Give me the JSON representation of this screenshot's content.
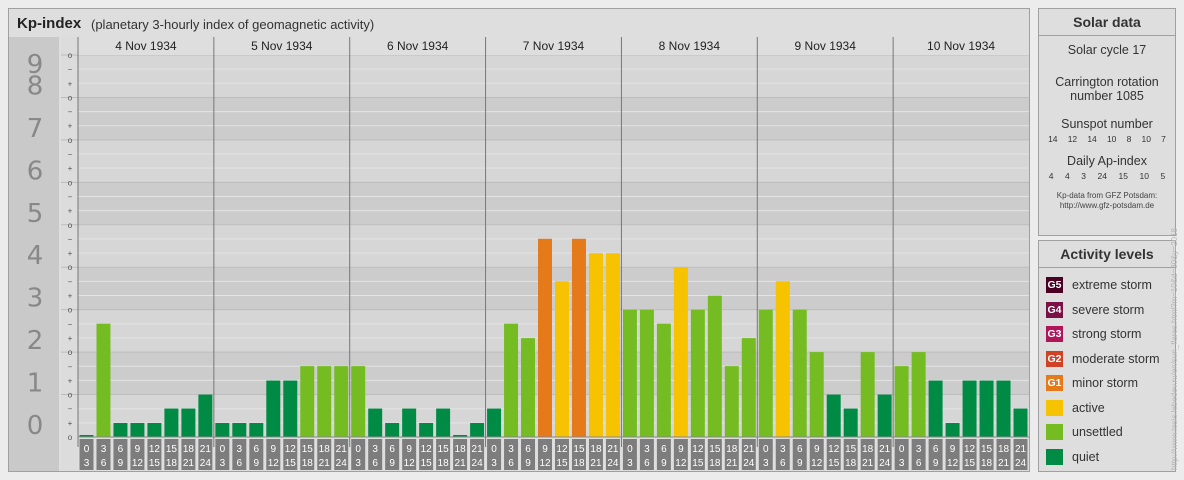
{
  "title": "Kp-index",
  "subtitle": "(planetary 3-hourly index of geomagnetic activity)",
  "chart_data": {
    "type": "bar",
    "title": "Kp-index",
    "ylim": [
      0,
      9
    ],
    "y_ticks": [
      "0",
      "1",
      "2",
      "3",
      "4",
      "5",
      "6",
      "7",
      "8",
      "9"
    ],
    "minor_marks": [
      "o",
      "+",
      "−"
    ],
    "days": [
      "4 Nov 1934",
      "5 Nov 1934",
      "6 Nov 1934",
      "7 Nov 1934",
      "8 Nov 1934",
      "9 Nov 1934",
      "10 Nov 1934"
    ],
    "interval_labels": [
      [
        "0",
        "3"
      ],
      [
        "3",
        "6"
      ],
      [
        "6",
        "9"
      ],
      [
        "9",
        "12"
      ],
      [
        "12",
        "15"
      ],
      [
        "15",
        "18"
      ],
      [
        "18",
        "21"
      ],
      [
        "21",
        "24"
      ]
    ],
    "values": [
      0.0,
      2.67,
      0.33,
      0.33,
      0.33,
      0.67,
      0.67,
      1.0,
      0.33,
      0.33,
      0.33,
      1.33,
      1.33,
      1.67,
      1.67,
      1.67,
      1.67,
      0.67,
      0.33,
      0.67,
      0.33,
      0.67,
      0.0,
      0.33,
      0.67,
      2.67,
      2.33,
      4.67,
      3.67,
      4.67,
      4.33,
      4.33,
      3.0,
      3.0,
      2.67,
      4.0,
      3.0,
      3.33,
      1.67,
      2.33,
      3.0,
      3.67,
      3.0,
      2.0,
      1.0,
      0.67,
      2.0,
      1.0,
      1.67,
      2.0,
      1.33,
      0.33,
      1.33,
      1.33,
      1.33,
      0.67
    ],
    "grid": true
  },
  "colors": {
    "quiet": "#008b45",
    "unsettled": "#74bc22",
    "active": "#f7c200",
    "g1": "#e47a1a",
    "g2": "#d04226",
    "g3": "#b0155a",
    "g4": "#7a1046",
    "g5": "#4a0022"
  },
  "solar": {
    "header": "Solar data",
    "cycle": "Solar cycle 17",
    "carrington": "Carrington rotation number 1085",
    "sunspot_label": "Sunspot number",
    "sunspot_values": [
      "14",
      "12",
      "14",
      "10",
      "8",
      "10",
      "7"
    ],
    "ap_label": "Daily Ap-index",
    "ap_values": [
      "4",
      "4",
      "3",
      "24",
      "15",
      "10",
      "5"
    ],
    "source_line1": "Kp-data from GFZ Potsdam:",
    "source_line2": "http://www.gfz-potsdam.de"
  },
  "levels": {
    "header": "Activity levels",
    "items": [
      {
        "badge": "G5",
        "label": "extreme storm",
        "color": "#4a0022"
      },
      {
        "badge": "G4",
        "label": "severe storm",
        "color": "#7a1046"
      },
      {
        "badge": "G3",
        "label": "strong storm",
        "color": "#b0155a"
      },
      {
        "badge": "G2",
        "label": "moderate storm",
        "color": "#d04226"
      },
      {
        "badge": "G1",
        "label": "minor storm",
        "color": "#e47a1a"
      },
      {
        "badge": "",
        "label": "active",
        "color": "#f7c200"
      },
      {
        "badge": "",
        "label": "unsettled",
        "color": "#74bc22"
      },
      {
        "badge": "",
        "label": "quiet",
        "color": "#008b45"
      }
    ]
  },
  "watermark": "http://www.tesis.lebedev.ru/en/sun_flares.html?m=10&d=30&y=2018"
}
